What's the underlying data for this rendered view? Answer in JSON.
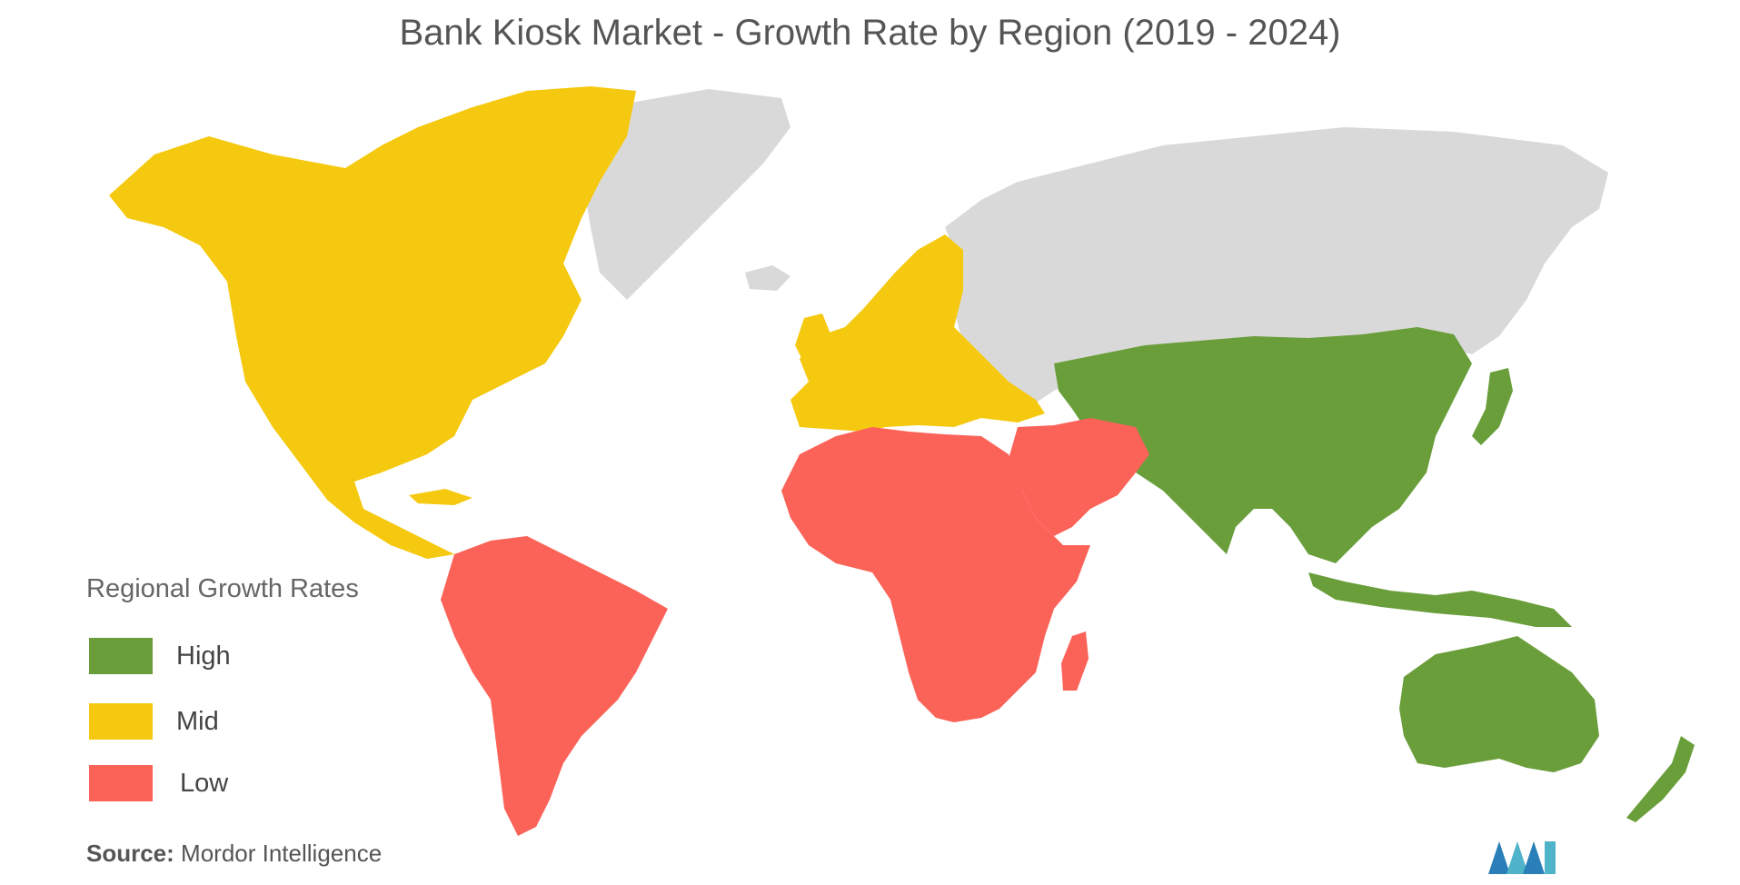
{
  "title": "Bank Kiosk Market  - Growth Rate by Region (2019 - 2024)",
  "legend": {
    "heading": "Regional Growth Rates",
    "items": [
      {
        "label": "High",
        "color": "#6a9e3b"
      },
      {
        "label": "Mid",
        "color": "#f5c90f"
      },
      {
        "label": "Low",
        "color": "#fb6359"
      }
    ]
  },
  "no_data_color": "#d9d9d9",
  "regions": [
    {
      "name": "North America",
      "level": "Mid"
    },
    {
      "name": "Europe",
      "level": "Mid"
    },
    {
      "name": "Asia-Pacific",
      "level": "High"
    },
    {
      "name": "South America",
      "level": "Low"
    },
    {
      "name": "Middle East and Africa",
      "level": "Low"
    }
  ],
  "source": {
    "label": "Source:",
    "text": "Mordor Intelligence"
  },
  "logo_icon": "mordor-intelligence-logo-icon"
}
